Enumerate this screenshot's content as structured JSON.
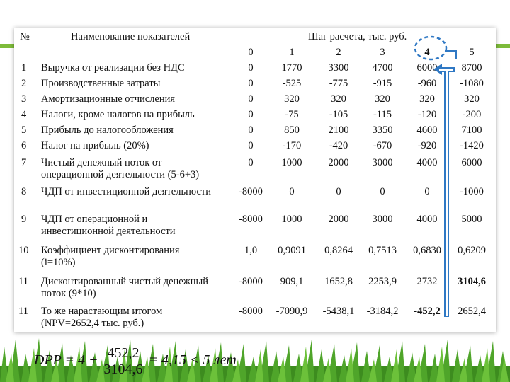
{
  "header": {
    "num_label": "№",
    "name_label": "Наименование показателей",
    "step_label": "Шаг расчета, тыс. руб.",
    "steps": [
      "0",
      "1",
      "2",
      "3",
      "4",
      "5"
    ]
  },
  "rows": [
    {
      "num": "1",
      "name": "Выручка от реализации без НДС",
      "values": [
        "0",
        "1770",
        "3300",
        "4700",
        "6000",
        "8700"
      ]
    },
    {
      "num": "2",
      "name": "Производственные затраты",
      "values": [
        "0",
        "-525",
        "-775",
        "-915",
        "-960",
        "-1080"
      ]
    },
    {
      "num": "3",
      "name": "Амортизационные отчисления",
      "values": [
        "0",
        "320",
        "320",
        "320",
        "320",
        "320"
      ]
    },
    {
      "num": "4",
      "name": "Налоги, кроме налогов на прибыль",
      "values": [
        "0",
        "-75",
        "-105",
        "-115",
        "-120",
        "-200"
      ]
    },
    {
      "num": "5",
      "name": "Прибыль до налогообложения",
      "values": [
        "0",
        "850",
        "2100",
        "3350",
        "4600",
        "7100"
      ]
    },
    {
      "num": "6",
      "name": "Налог на прибыль (20%)",
      "values": [
        "0",
        "-170",
        "-420",
        "-670",
        "-920",
        "-1420"
      ]
    },
    {
      "num": "7",
      "name": "Чистый денежный поток от операционной деятельности (5-6+3)",
      "values": [
        "0",
        "1000",
        "2000",
        "3000",
        "4000",
        "6000"
      ]
    },
    {
      "num": "8",
      "name": "ЧДП от инвестиционной деятельности",
      "values": [
        "-8000",
        "0",
        "0",
        "0",
        "0",
        "-1000"
      ]
    },
    {
      "num": "9",
      "name": "ЧДП от операционной и инвестиционной деятельности",
      "values": [
        "-8000",
        "1000",
        "2000",
        "3000",
        "4000",
        "5000"
      ]
    },
    {
      "num": "10",
      "name": "Коэффициент дисконтирования (i=10%)",
      "values": [
        "1,0",
        "0,9091",
        "0,8264",
        "0,7513",
        "0,6830",
        "0,6209"
      ]
    },
    {
      "num": "11",
      "name": "Дисконтированный чистый денежный поток (9*10)",
      "values": [
        "-8000",
        "909,1",
        "1652,8",
        "2253,9",
        "2732",
        "3104,6"
      ]
    },
    {
      "num": "11",
      "name": "То же нарастающим итогом (NPV=2652,4 тыс. руб.)",
      "values": [
        "-8000",
        "-7090,9",
        "-5438,1",
        "-3184,2",
        "-452,2",
        "2652,4"
      ]
    }
  ],
  "formula": {
    "lhs": "DPP = 4 +",
    "numerator": "452,2",
    "denominator": "3104,6",
    "rhs": "= 4,15 < 5 лет"
  },
  "colors": {
    "accent_green": "#7dbb3a",
    "callout_blue": "#2f78c4"
  }
}
